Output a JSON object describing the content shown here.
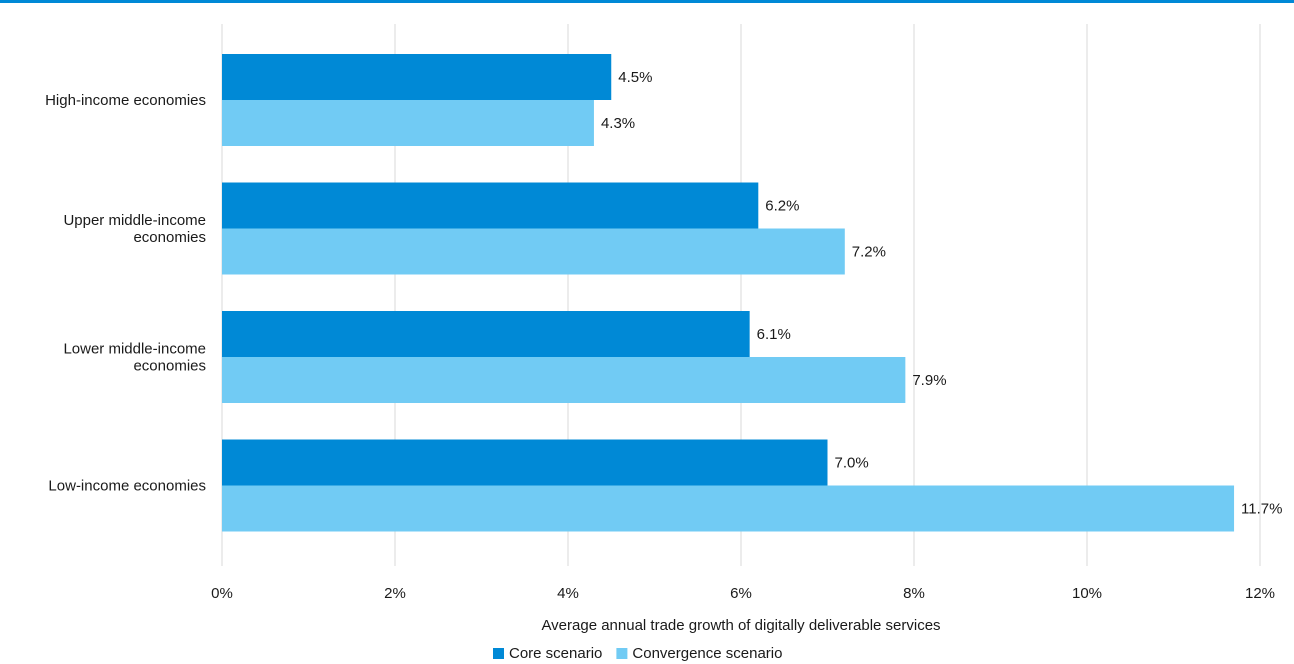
{
  "chart_data": {
    "type": "bar",
    "orientation": "horizontal",
    "categories": [
      "High-income economies",
      "Upper middle-income economies",
      "Lower middle-income economies",
      "Low-income economies"
    ],
    "category_label_lines": [
      [
        "High-income economies"
      ],
      [
        "Upper middle-income",
        "economies"
      ],
      [
        "Lower middle-income",
        "economies"
      ],
      [
        "Low-income economies"
      ]
    ],
    "series": [
      {
        "name": "Core scenario",
        "color": "#0089d6",
        "values": [
          4.5,
          6.2,
          6.1,
          7.0
        ],
        "labels": [
          "4.5%",
          "6.2%",
          "6.1%",
          "7.0%"
        ]
      },
      {
        "name": "Convergence scenario",
        "color": "#71cbf4",
        "values": [
          4.3,
          7.2,
          7.9,
          11.7
        ],
        "labels": [
          "4.3%",
          "7.2%",
          "7.9%",
          "11.7%"
        ]
      }
    ],
    "xlabel": "Average annual trade growth of digitally deliverable services",
    "xlim": [
      0,
      12
    ],
    "xticks": [
      0,
      2,
      4,
      6,
      8,
      10,
      12
    ],
    "xtick_labels": [
      "0%",
      "2%",
      "4%",
      "6%",
      "8%",
      "10%",
      "12%"
    ],
    "grid": true,
    "legend_position": "bottom-center",
    "accent_color": "#0089d6"
  }
}
